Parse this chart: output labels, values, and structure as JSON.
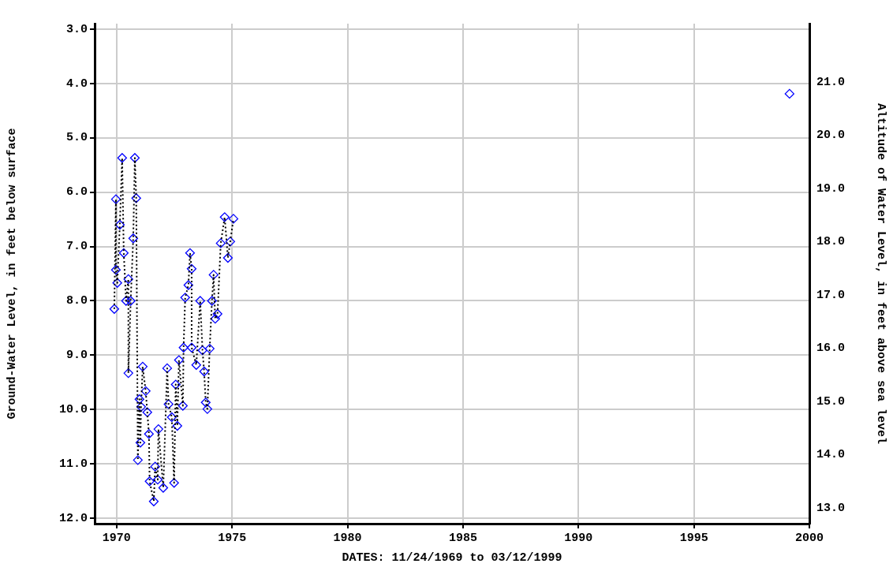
{
  "chart_data": {
    "type": "scatter",
    "xlabel": "DATES: 11/24/1969 to 03/12/1999",
    "ylabel": "Ground-Water Level, in feet below surface",
    "y2label": "Altitude of Water Level, in feet above sea level",
    "xlim": [
      1969.05,
      2000
    ],
    "xticks": [
      1970,
      1975,
      1980,
      1985,
      1990,
      1995,
      2000
    ],
    "ylim": [
      12.1,
      2.9
    ],
    "yticks": [
      {
        "value": 3,
        "label": "3.0"
      },
      {
        "value": 4,
        "label": "4.0"
      },
      {
        "value": 5,
        "label": "5.0"
      },
      {
        "value": 6,
        "label": "6.0"
      },
      {
        "value": 7,
        "label": "7.0"
      },
      {
        "value": 8,
        "label": "8.0"
      },
      {
        "value": 9,
        "label": "9.0"
      },
      {
        "value": 10,
        "label": "10.0"
      },
      {
        "value": 11,
        "label": "11.0"
      },
      {
        "value": 12,
        "label": "12.0"
      }
    ],
    "y2lim": [
      12.7,
      22.1
    ],
    "y2ticks": [
      {
        "value": 13,
        "label": "13.0"
      },
      {
        "value": 14,
        "label": "14.0"
      },
      {
        "value": 15,
        "label": "15.0"
      },
      {
        "value": 16,
        "label": "16.0"
      },
      {
        "value": 17,
        "label": "17.0"
      },
      {
        "value": 18,
        "label": "18.0"
      },
      {
        "value": 19,
        "label": "19.0"
      },
      {
        "value": 20,
        "label": "20.0"
      },
      {
        "value": 21,
        "label": "21.0"
      }
    ],
    "grid": true,
    "legend": false,
    "series": [
      {
        "type": "line",
        "color": "#000000",
        "line_style": "dotted",
        "marker": "none",
        "x": [
          1969.9,
          1969.97,
          1969.97,
          1970.03,
          1970.14,
          1970.24,
          1970.31,
          1970.41,
          1970.51,
          1970.51,
          1970.61,
          1970.72,
          1970.79,
          1970.85,
          1970.92,
          1970.99,
          1971.03,
          1971.06,
          1971.13,
          1971.26,
          1971.33,
          1971.4,
          1971.43,
          1971.61,
          1971.67,
          1971.78,
          1971.81,
          1972.02,
          1972.19,
          1972.25,
          1972.39,
          1972.49,
          1972.56,
          1972.63,
          1972.7,
          1972.87,
          1972.9,
          1972.97,
          1973.11,
          1973.18,
          1973.25,
          1973.25,
          1973.45,
          1973.62,
          1973.72,
          1973.79,
          1973.86,
          1973.93,
          1974.03,
          1974.13,
          1974.2,
          1974.27,
          1974.37,
          1974.51,
          1974.68,
          1974.82,
          1974.92,
          1975.06
        ],
        "values": [
          8.15,
          6.13,
          7.43,
          7.67,
          6.6,
          5.37,
          7.12,
          8.0,
          7.6,
          9.33,
          8.0,
          6.85,
          5.37,
          6.11,
          10.93,
          9.81,
          10.61,
          9.95,
          9.21,
          9.66,
          10.05,
          10.45,
          11.32,
          11.69,
          11.05,
          11.29,
          10.36,
          11.44,
          9.24,
          9.9,
          10.14,
          11.35,
          9.54,
          10.3,
          9.09,
          9.93,
          8.86,
          7.94,
          7.71,
          7.12,
          7.41,
          8.86,
          9.18,
          8.0,
          8.91,
          9.3,
          9.87,
          9.99,
          8.88,
          8.0,
          7.52,
          8.33,
          8.24,
          6.94,
          6.46,
          7.21,
          6.91,
          6.49
        ]
      },
      {
        "type": "scatter",
        "color": "#0000ff",
        "marker": "diamond",
        "x": [
          1969.9,
          1969.97,
          1969.97,
          1970.03,
          1970.14,
          1970.24,
          1970.31,
          1970.41,
          1970.51,
          1970.51,
          1970.61,
          1970.72,
          1970.79,
          1970.85,
          1970.92,
          1970.99,
          1971.03,
          1971.06,
          1971.13,
          1971.26,
          1971.33,
          1971.4,
          1971.43,
          1971.61,
          1971.67,
          1971.78,
          1971.81,
          1972.02,
          1972.19,
          1972.25,
          1972.39,
          1972.49,
          1972.56,
          1972.63,
          1972.7,
          1972.87,
          1972.9,
          1972.97,
          1973.11,
          1973.18,
          1973.25,
          1973.25,
          1973.45,
          1973.62,
          1973.72,
          1973.79,
          1973.86,
          1973.93,
          1974.03,
          1974.13,
          1974.2,
          1974.27,
          1974.37,
          1974.51,
          1974.68,
          1974.82,
          1974.92,
          1975.06,
          1999.14
        ],
        "values": [
          8.15,
          6.13,
          7.43,
          7.67,
          6.6,
          5.37,
          7.12,
          8.0,
          7.6,
          9.33,
          8.0,
          6.85,
          5.37,
          6.11,
          10.93,
          9.81,
          10.61,
          9.95,
          9.21,
          9.66,
          10.05,
          10.45,
          11.32,
          11.69,
          11.05,
          11.29,
          10.36,
          11.44,
          9.24,
          9.9,
          10.14,
          11.35,
          9.54,
          10.3,
          9.09,
          9.93,
          8.86,
          7.94,
          7.71,
          7.12,
          7.41,
          8.86,
          9.18,
          8.0,
          8.91,
          9.3,
          9.87,
          9.99,
          8.88,
          8.0,
          7.52,
          8.33,
          8.24,
          6.94,
          6.46,
          7.21,
          6.91,
          6.49,
          4.19
        ]
      }
    ]
  }
}
